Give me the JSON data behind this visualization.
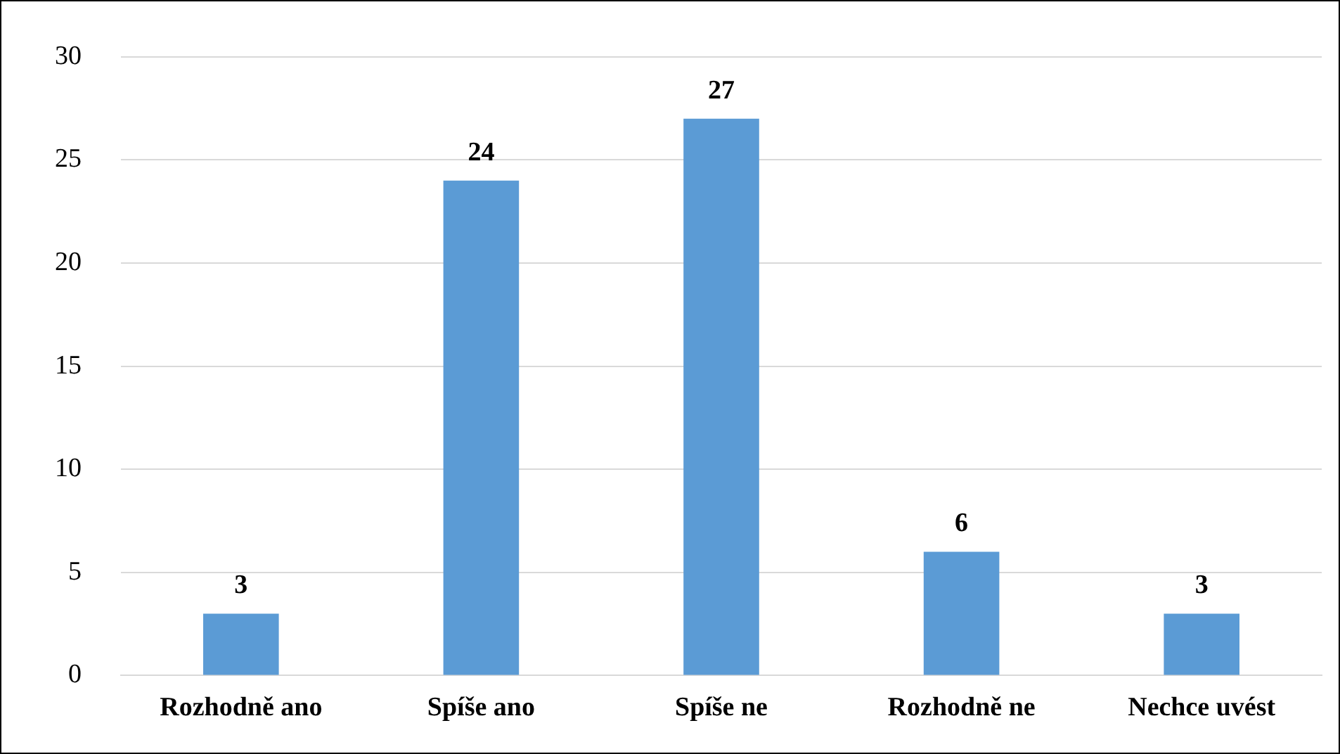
{
  "chart_data": {
    "type": "bar",
    "categories": [
      "Rozhodně ano",
      "Spíše ano",
      "Spíše ne",
      "Rozhodně ne",
      "Nechce uvést"
    ],
    "values": [
      3,
      24,
      27,
      6,
      3
    ],
    "color": "#5b9bd5",
    "ylim": [
      0,
      30
    ],
    "yticks": [
      0,
      5,
      10,
      15,
      20,
      25,
      30
    ],
    "grid": "y",
    "data_labels": true,
    "legend": false
  }
}
